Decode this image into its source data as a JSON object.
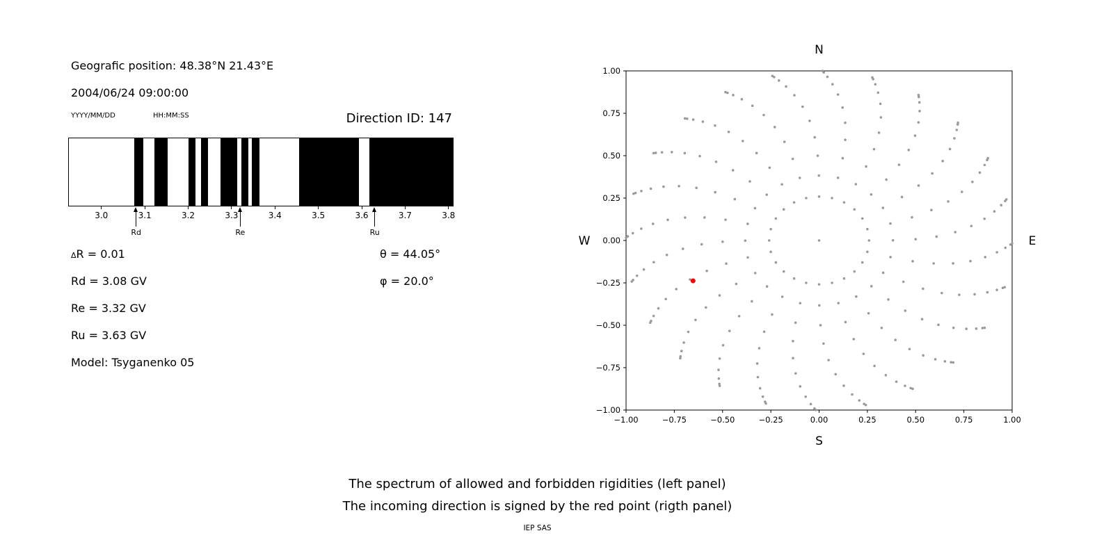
{
  "header": {
    "position": "Geografic position: 48.38°N 21.43°E",
    "datetime": "2004/06/24 09:00:00",
    "date_format_label": "YYYY/MM/DD",
    "time_format_label": "HH:MM:SS",
    "direction_id": "Direction ID: 147"
  },
  "left_panel": {
    "delta_prefix": "Δ",
    "delta_value": "R = 0.01",
    "rd": "Rd = 3.08 GV",
    "re": "Re = 3.32 GV",
    "ru": "Ru = 3.63 GV",
    "model": "Model: Tsyganenko 05",
    "theta": "θ = 44.05°",
    "phi": "φ = 20.0°"
  },
  "caption": {
    "line1": "The spectrum of allowed and forbidden rigidities (left panel)",
    "line2": "The incoming direction is signed by the red point (rigth panel)",
    "credit": "IEP SAS"
  },
  "chart_data": [
    {
      "name": "rigidity_spectrum",
      "type": "bar",
      "description": "Barcode-style spectrum of rigidities in GV; black bands = forbidden, white = allowed",
      "xlim": [
        2.925,
        3.81
      ],
      "band_color": "#000000",
      "xticks": [
        {
          "value": 3.0,
          "label": "3.0"
        },
        {
          "value": 3.1,
          "label": "3.1"
        },
        {
          "value": 3.2,
          "label": "3.2"
        },
        {
          "value": 3.3,
          "label": "3.3"
        },
        {
          "value": 3.4,
          "label": "3.4"
        },
        {
          "value": 3.5,
          "label": "3.5"
        },
        {
          "value": 3.6,
          "label": "3.6"
        },
        {
          "value": 3.7,
          "label": "3.7"
        },
        {
          "value": 3.8,
          "label": "3.8"
        }
      ],
      "forbidden_bands_gv": [
        [
          3.075,
          3.097
        ],
        [
          3.123,
          3.152
        ],
        [
          3.201,
          3.217
        ],
        [
          3.23,
          3.246
        ],
        [
          3.275,
          3.313
        ],
        [
          3.322,
          3.338
        ],
        [
          3.346,
          3.364
        ],
        [
          3.455,
          3.594
        ],
        [
          3.618,
          3.81
        ]
      ],
      "markers": [
        {
          "label": "Rd",
          "value": 3.08
        },
        {
          "label": "Re",
          "value": 3.32
        },
        {
          "label": "Ru",
          "value": 3.63
        }
      ]
    },
    {
      "name": "incoming_direction",
      "type": "scatter",
      "xlim": [
        -1,
        1
      ],
      "ylim": [
        -1,
        1
      ],
      "xticks": [
        {
          "value": -1.0,
          "label": "−1.00"
        },
        {
          "value": -0.75,
          "label": "−0.75"
        },
        {
          "value": -0.5,
          "label": "−0.50"
        },
        {
          "value": -0.25,
          "label": "−0.25"
        },
        {
          "value": 0.0,
          "label": "0.00"
        },
        {
          "value": 0.25,
          "label": "0.25"
        },
        {
          "value": 0.5,
          "label": "0.50"
        },
        {
          "value": 0.75,
          "label": "0.75"
        },
        {
          "value": 1.0,
          "label": "1.00"
        }
      ],
      "yticks": [
        {
          "value": -1.0,
          "label": "−1.00"
        },
        {
          "value": -0.75,
          "label": "−0.75"
        },
        {
          "value": -0.5,
          "label": "−0.50"
        },
        {
          "value": -0.25,
          "label": "−0.25"
        },
        {
          "value": 0.0,
          "label": "0.00"
        },
        {
          "value": 0.25,
          "label": "0.25"
        },
        {
          "value": 0.5,
          "label": "0.50"
        },
        {
          "value": 0.75,
          "label": "0.75"
        },
        {
          "value": 1.0,
          "label": "1.00"
        }
      ],
      "compass": {
        "top": "N",
        "bottom": "S",
        "left": "W",
        "right": "E"
      },
      "grid_pattern": {
        "description": "Gray dots: grid of incoming directions, radius = sin(zenith), spokes every 15° azimuth, curved outward",
        "azimuth_step_deg": 15,
        "zenith_start_deg": 15,
        "zenith_step_deg": 7.5,
        "zenith_end_deg": 90,
        "twist_deg": 14,
        "twist_exponent": 2.5,
        "center_dot": true,
        "dot_color": "#9a9a9a"
      },
      "red_point": {
        "x": -0.653,
        "y": -0.238,
        "color": "#ff0000"
      }
    }
  ]
}
